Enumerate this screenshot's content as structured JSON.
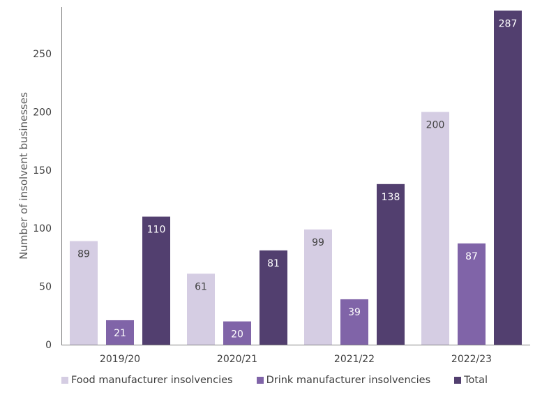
{
  "chart_data": {
    "type": "bar",
    "title": "",
    "xlabel": "",
    "ylabel": "Number of insolvent businesses",
    "ylim": [
      0,
      290
    ],
    "yticks": [
      0,
      50,
      100,
      150,
      200,
      250
    ],
    "categories": [
      "2019/20",
      "2020/21",
      "2021/22",
      "2022/23"
    ],
    "series": [
      {
        "name": "Food manufacturer insolvencies",
        "color": "#d5cde3",
        "label_color": "#404040",
        "values": [
          89,
          61,
          99,
          200
        ]
      },
      {
        "name": "Drink manufacturer insolvencies",
        "color": "#8064a8",
        "label_color": "#ffffff",
        "values": [
          21,
          20,
          39,
          87
        ]
      },
      {
        "name": "Total",
        "color": "#523f6f",
        "label_color": "#ffffff",
        "values": [
          110,
          81,
          138,
          287
        ]
      }
    ],
    "grid": false,
    "legend_position": "bottom"
  }
}
